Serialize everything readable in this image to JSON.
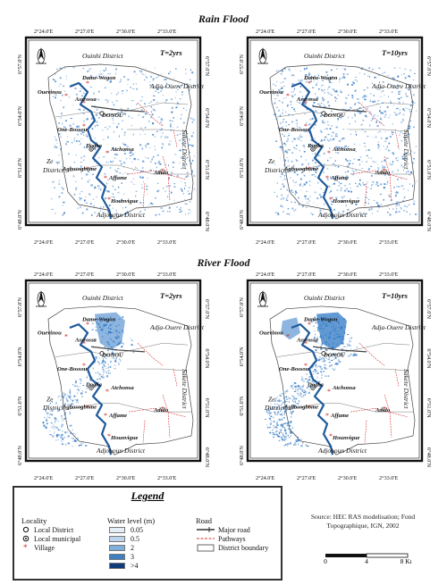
{
  "titles": {
    "rain": "Rain Flood",
    "river": "River Flood"
  },
  "maps": [
    {
      "id": "rain-2",
      "period": "T=2yrs"
    },
    {
      "id": "rain-10",
      "period": "T=10yrs"
    },
    {
      "id": "river-2",
      "period": "T=2yrs"
    },
    {
      "id": "river-10",
      "period": "T=10yrs"
    }
  ],
  "coords": {
    "top": [
      "2°24.0'E",
      "2°27.0'E",
      "2°30.0'E",
      "2°33.0'E"
    ],
    "left": [
      "6°57.0'N",
      "6°54.0'N",
      "6°51.0'N",
      "6°48.0'N"
    ],
    "right": [
      "6°57.0'N",
      "6°54.0'N",
      "6°51.0'N",
      "6°48.0'N"
    ]
  },
  "districts": {
    "north": "Ouinhi District",
    "northeast": "Adja-Ouere District",
    "east": "Sakete District",
    "west_1": "Ze",
    "west_2": "District",
    "south": "Adjohoun District"
  },
  "places": {
    "dame_wogon": "Dame-Wogon",
    "ouevinou": "Ouevinou",
    "assrossa": "Assrossa",
    "donou": "DONOU",
    "one_bossou": "One-Bossou",
    "dogba": "Dogba",
    "atchonsa": "Atchonsa",
    "agbosogbome": "Agbosogbome",
    "affame": "Affame",
    "adido": "Adido",
    "hounvigue": "Hounvigue"
  },
  "legend": {
    "title": "Legend",
    "locality": {
      "header": "Locality",
      "items": [
        "Local District",
        "Local municipal",
        "Village"
      ]
    },
    "water": {
      "header": "Water level (m)",
      "items": [
        {
          "label": "0.05",
          "color": "#e4eef8"
        },
        {
          "label": "0.5",
          "color": "#bcd4ec"
        },
        {
          "label": "2",
          "color": "#7fb0dc"
        },
        {
          "label": "3",
          "color": "#3e7fc0"
        },
        {
          "label": ">4",
          "color": "#0f3c7a"
        }
      ]
    },
    "road": {
      "header": "Road",
      "items": [
        "Major road",
        "Pathways",
        "District boundary"
      ]
    }
  },
  "source": {
    "line1": "Source:  HEC RAS modelisation; Fond",
    "line2": "Topographique, IGN, 2002"
  },
  "scale": {
    "t0": "0",
    "t1": "4",
    "t2": "8 Km"
  },
  "colors": {
    "river": "#1f5a9a",
    "road": "#444",
    "pathway": "#d33",
    "flood": "#2f78c4"
  }
}
